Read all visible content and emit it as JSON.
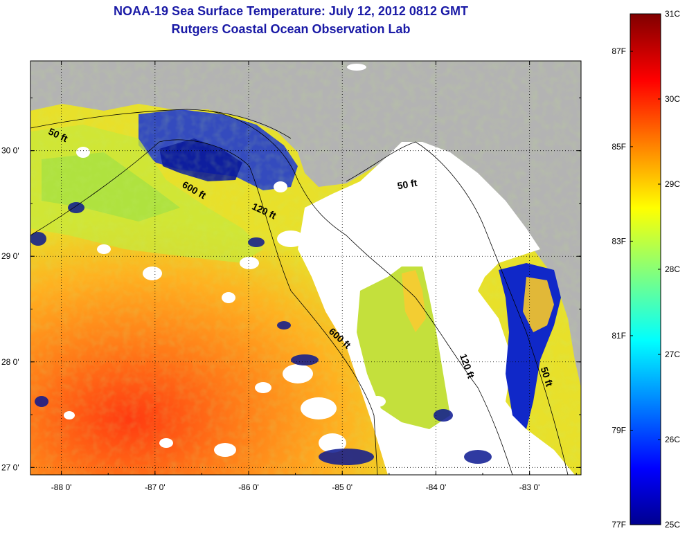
{
  "header": {
    "title": "NOAA-19 Sea Surface Temperature:  July 12, 2012 0812 GMT",
    "subtitle": "Rutgers Coastal Ocean Observation Lab"
  },
  "axes": {
    "x_ticks": [
      {
        "value": -88,
        "label": "-88 0'"
      },
      {
        "value": -87,
        "label": "-87 0'"
      },
      {
        "value": -86,
        "label": "-86 0'"
      },
      {
        "value": -85,
        "label": "-85 0'"
      },
      {
        "value": -84,
        "label": "-84 0'"
      },
      {
        "value": -83,
        "label": "-83 0'"
      }
    ],
    "y_ticks": [
      {
        "value": 30,
        "label": "30 0'"
      },
      {
        "value": 29,
        "label": "29 0'"
      },
      {
        "value": 28,
        "label": "28 0'"
      },
      {
        "value": 27,
        "label": "27 0'"
      }
    ],
    "xlim": [
      -88.33,
      -82.45
    ],
    "ylim": [
      26.93,
      30.85
    ]
  },
  "contour_labels": [
    {
      "text": "50 ft",
      "lon": -88.05,
      "lat": 30.12,
      "rotate": 25
    },
    {
      "text": "600 ft",
      "lon": -86.6,
      "lat": 29.6,
      "rotate": 30
    },
    {
      "text": "120 ft",
      "lon": -85.85,
      "lat": 29.4,
      "rotate": 25
    },
    {
      "text": "50 ft",
      "lon": -84.3,
      "lat": 29.65,
      "rotate": -10
    },
    {
      "text": "600 ft",
      "lon": -85.05,
      "lat": 28.2,
      "rotate": 42
    },
    {
      "text": "120 ft",
      "lon": -83.7,
      "lat": 27.95,
      "rotate": 70
    },
    {
      "text": "50 ft",
      "lon": -82.85,
      "lat": 27.85,
      "rotate": 72
    }
  ],
  "colorbar": {
    "min_c": 25,
    "max_c": 31,
    "celsius_labels": [
      {
        "value": 31,
        "label": "31C"
      },
      {
        "value": 30,
        "label": "30C"
      },
      {
        "value": 29,
        "label": "29C"
      },
      {
        "value": 28,
        "label": "28C"
      },
      {
        "value": 27,
        "label": "27C"
      },
      {
        "value": 26,
        "label": "26C"
      },
      {
        "value": 25,
        "label": "25C"
      }
    ],
    "fahrenheit_labels": [
      {
        "value_c": 30.56,
        "label": "87F"
      },
      {
        "value_c": 29.44,
        "label": "85F"
      },
      {
        "value_c": 28.33,
        "label": "83F"
      },
      {
        "value_c": 27.22,
        "label": "81F"
      },
      {
        "value_c": 26.11,
        "label": "79F"
      },
      {
        "value_c": 25.0,
        "label": "77F"
      }
    ]
  },
  "colors": {
    "land": "#b3b3b3",
    "cloud": "#ffffff",
    "title": "#1a1aa6"
  }
}
